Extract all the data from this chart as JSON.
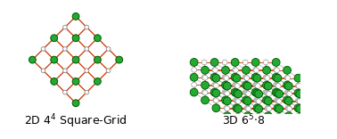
{
  "green_color": "#22aa33",
  "green_edge": "#005500",
  "white_node_color": "#ffffff",
  "white_node_edge": "#999999",
  "red_bond": "#cc3300",
  "gray_bond": "#aaaaaa",
  "label_fontsize": 9,
  "left_label": "2D 4$^4$ Square-Grid",
  "right_label": "3D 6$^5$$\\cdot$8"
}
